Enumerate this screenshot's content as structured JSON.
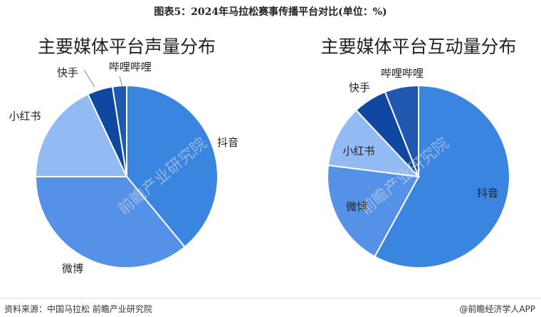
{
  "figure_title": "图表5：2024年马拉松赛事传播平台对比(单位：%)",
  "footer": {
    "source": "资料来源：中国马拉松 前瞻产业研究院",
    "brand": "@前瞻经济学人APP"
  },
  "watermark_text": "前瞻产业研究院",
  "chart_data": [
    {
      "type": "pie",
      "title": "主要媒体平台声量分布",
      "labels": [
        "抖音",
        "微博",
        "小红书",
        "快手",
        "哔哩哔哩"
      ],
      "values": [
        39,
        36,
        18,
        4.5,
        2.5
      ],
      "colors": [
        "#3a85e0",
        "#5591e6",
        "#92bbf3",
        "#0f47a1",
        "#2058b0"
      ]
    },
    {
      "type": "pie",
      "title": "主要媒体平台互动量分布",
      "labels": [
        "抖音",
        "微博",
        "小红书",
        "快手",
        "哔哩哔哩"
      ],
      "values": [
        58,
        19,
        11,
        6,
        6
      ],
      "colors": [
        "#3a85e0",
        "#5591e6",
        "#92bbf3",
        "#0f47a1",
        "#2058b0"
      ]
    }
  ]
}
